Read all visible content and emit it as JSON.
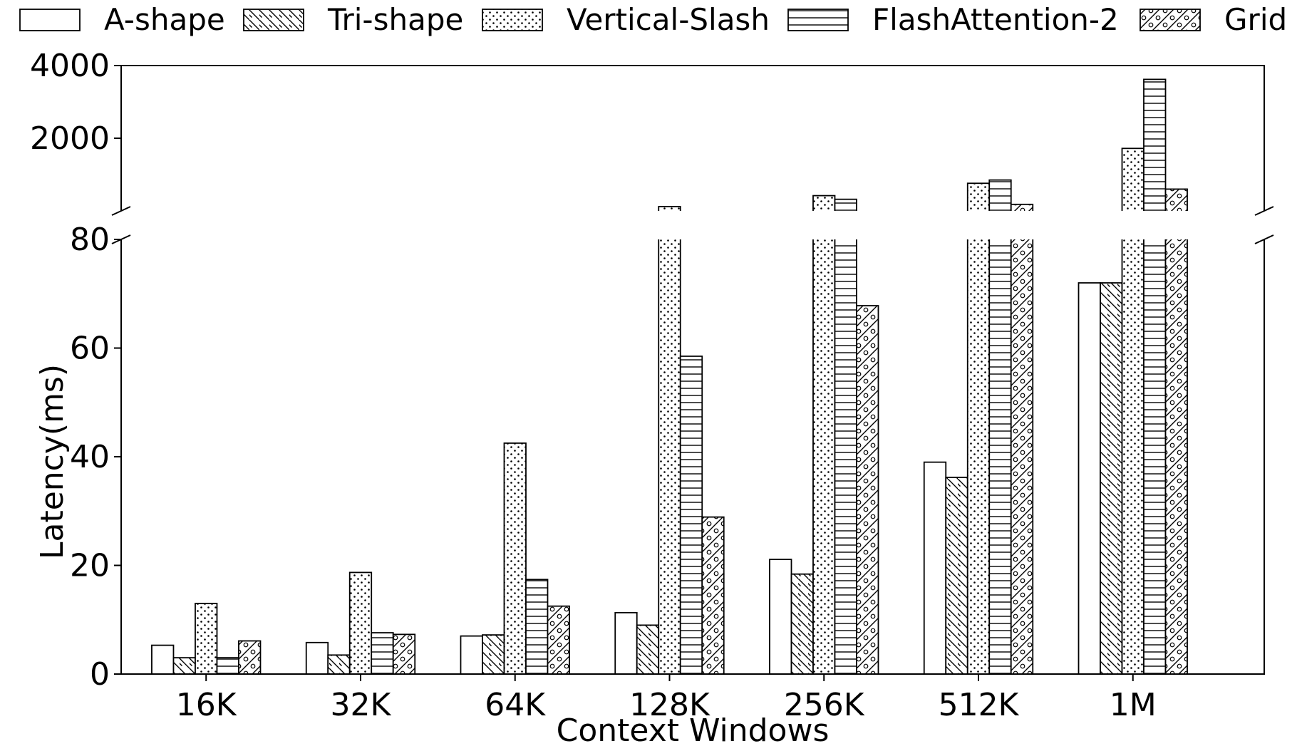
{
  "chart_data": {
    "type": "bar",
    "title": "",
    "xlabel": "Context Windows",
    "ylabel": "Latency(ms)",
    "categories": [
      "16K",
      "32K",
      "64K",
      "128K",
      "256K",
      "512K",
      "1M"
    ],
    "broken_y_axis": true,
    "lower_ylim": [
      0,
      80
    ],
    "upper_ylim": [
      0,
      4000
    ],
    "lower_yticks": [
      "0",
      "20",
      "40",
      "60",
      "80"
    ],
    "upper_yticks": [
      "2000",
      "4000"
    ],
    "legend_position": "top",
    "series": [
      {
        "name": "A-shape",
        "pattern": "blank",
        "values": [
          5.3,
          5.8,
          7.0,
          11.3,
          21.1,
          39.0,
          72.0
        ]
      },
      {
        "name": "Tri-shape",
        "pattern": "diagonal-hatch",
        "values": [
          3.0,
          3.5,
          7.2,
          9.0,
          18.4,
          36.2,
          72.0
        ]
      },
      {
        "name": "Vertical-Slash",
        "pattern": "dots",
        "values": [
          13.0,
          18.7,
          42.5,
          120,
          420,
          760,
          1720
        ]
      },
      {
        "name": "FlashAttention-2",
        "pattern": "horizontal-lines",
        "values": [
          3.0,
          7.6,
          17.4,
          58.5,
          320,
          850,
          3620
        ]
      },
      {
        "name": "Grid",
        "pattern": "slash-circles",
        "values": [
          6.1,
          7.3,
          12.5,
          28.9,
          67.8,
          180,
          600
        ]
      }
    ]
  }
}
